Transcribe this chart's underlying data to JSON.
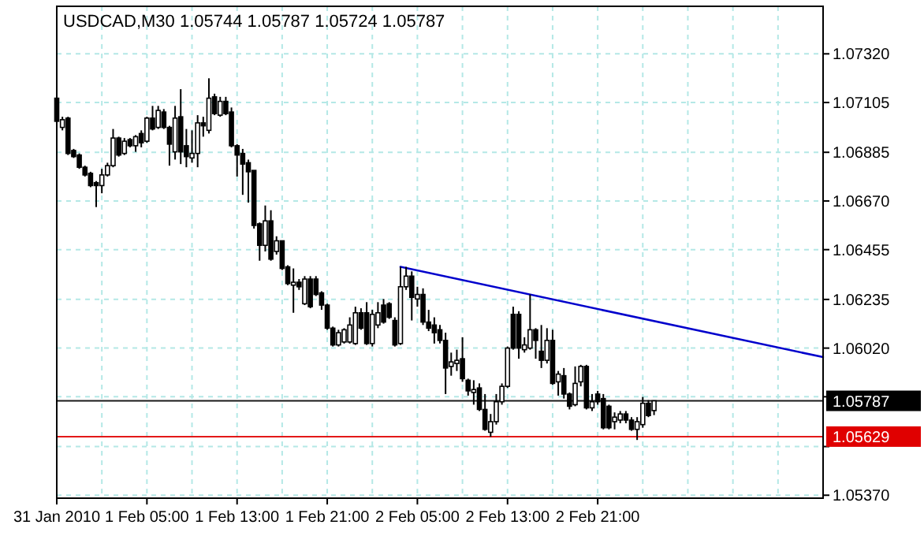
{
  "chart_data": {
    "type": "candlestick",
    "title": "USDCAD,M30  1.05744 1.05787 1.05724 1.05787",
    "x": [
      "2010-01-31T21:00",
      "2010-01-31T21:30",
      "2010-01-31T22:00",
      "2010-01-31T22:30",
      "2010-01-31T23:00",
      "2010-01-31T23:30",
      "2010-02-01T00:00",
      "2010-02-01T00:30",
      "2010-02-01T01:00",
      "2010-02-01T01:30",
      "2010-02-01T02:00",
      "2010-02-01T02:30",
      "2010-02-01T03:00",
      "2010-02-01T03:30",
      "2010-02-01T04:00",
      "2010-02-01T04:30",
      "2010-02-01T05:00",
      "2010-02-01T05:30",
      "2010-02-01T06:00",
      "2010-02-01T06:30",
      "2010-02-01T07:00",
      "2010-02-01T07:30",
      "2010-02-01T08:00",
      "2010-02-01T08:30",
      "2010-02-01T09:00",
      "2010-02-01T09:30",
      "2010-02-01T10:00",
      "2010-02-01T10:30",
      "2010-02-01T11:00",
      "2010-02-01T11:30",
      "2010-02-01T12:00",
      "2010-02-01T12:30",
      "2010-02-01T13:00",
      "2010-02-01T13:30",
      "2010-02-01T14:00",
      "2010-02-01T14:30",
      "2010-02-01T15:00",
      "2010-02-01T15:30",
      "2010-02-01T16:00",
      "2010-02-01T16:30",
      "2010-02-01T17:00",
      "2010-02-01T17:30",
      "2010-02-01T18:00",
      "2010-02-01T18:30",
      "2010-02-01T19:00",
      "2010-02-01T19:30",
      "2010-02-01T20:00",
      "2010-02-01T20:30",
      "2010-02-01T21:00",
      "2010-02-01T21:30",
      "2010-02-01T22:00",
      "2010-02-01T22:30",
      "2010-02-01T23:00",
      "2010-02-01T23:30",
      "2010-02-02T00:00",
      "2010-02-02T00:30",
      "2010-02-02T01:00",
      "2010-02-02T01:30",
      "2010-02-02T02:00",
      "2010-02-02T02:30",
      "2010-02-02T03:00",
      "2010-02-02T03:30",
      "2010-02-02T04:00",
      "2010-02-02T04:30",
      "2010-02-02T05:00",
      "2010-02-02T05:30",
      "2010-02-02T06:00",
      "2010-02-02T06:30",
      "2010-02-02T07:00",
      "2010-02-02T07:30",
      "2010-02-02T08:00",
      "2010-02-02T08:30",
      "2010-02-02T09:00",
      "2010-02-02T09:30",
      "2010-02-02T10:00",
      "2010-02-02T10:30",
      "2010-02-02T11:00",
      "2010-02-02T11:30",
      "2010-02-02T12:00",
      "2010-02-02T12:30",
      "2010-02-02T13:00",
      "2010-02-02T13:30",
      "2010-02-02T14:00",
      "2010-02-02T14:30",
      "2010-02-02T15:00",
      "2010-02-02T15:30",
      "2010-02-02T16:00",
      "2010-02-02T16:30",
      "2010-02-02T17:00",
      "2010-02-02T17:30",
      "2010-02-02T18:00",
      "2010-02-02T18:30",
      "2010-02-02T19:00",
      "2010-02-02T19:30",
      "2010-02-02T20:00",
      "2010-02-02T20:30",
      "2010-02-02T21:00",
      "2010-02-02T21:30",
      "2010-02-02T22:00",
      "2010-02-02T22:30",
      "2010-02-02T23:00",
      "2010-02-02T23:30",
      "2010-02-03T00:00",
      "2010-02-03T00:30",
      "2010-02-03T01:00",
      "2010-02-03T01:30",
      "2010-02-03T02:00"
    ],
    "ohlc": [
      [
        1.07124,
        1.07137,
        1.07015,
        1.07022
      ],
      [
        1.06995,
        1.07042,
        1.06982,
        1.07029
      ],
      [
        1.07036,
        1.07042,
        1.06873,
        1.0688
      ],
      [
        1.06893,
        1.069,
        1.0686,
        1.06866
      ],
      [
        1.06873,
        1.0688,
        1.06812,
        1.06819
      ],
      [
        1.06819,
        1.06826,
        1.06778,
        1.06785
      ],
      [
        1.06792,
        1.06799,
        1.06731,
        1.06738
      ],
      [
        1.06751,
        1.06758,
        1.06643,
        1.06738
      ],
      [
        1.06738,
        1.06812,
        1.06704,
        1.06785
      ],
      [
        1.06785,
        1.06839,
        1.06778,
        1.06826
      ],
      [
        1.06826,
        1.06988,
        1.06819,
        1.06948
      ],
      [
        1.06948,
        1.06954,
        1.06866,
        1.06873
      ],
      [
        1.0688,
        1.06948,
        1.06873,
        1.06934
      ],
      [
        1.06941,
        1.06948,
        1.06907,
        1.06914
      ],
      [
        1.06914,
        1.06961,
        1.06887,
        1.06954
      ],
      [
        1.06968,
        1.06982,
        1.06907,
        1.06927
      ],
      [
        1.06934,
        1.07042,
        1.06927,
        1.07036
      ],
      [
        1.07036,
        1.0709,
        1.06982,
        1.06988
      ],
      [
        1.06995,
        1.0709,
        1.06988,
        1.0707
      ],
      [
        1.07063,
        1.07076,
        1.06988,
        1.06995
      ],
      [
        1.06995,
        1.07002,
        1.06826,
        1.06921
      ],
      [
        1.06887,
        1.0709,
        1.06853,
        1.07036
      ],
      [
        1.07042,
        1.07164,
        1.06833,
        1.06887
      ],
      [
        1.06914,
        1.06988,
        1.06819,
        1.06866
      ],
      [
        1.0686,
        1.06982,
        1.06839,
        1.0688
      ],
      [
        1.0688,
        1.07049,
        1.06819,
        1.07015
      ],
      [
        1.07015,
        1.07042,
        1.06954,
        1.07002
      ],
      [
        1.06982,
        1.07212,
        1.06968,
        1.07124
      ],
      [
        1.0713,
        1.07144,
        1.07049,
        1.07056
      ],
      [
        1.07049,
        1.0713,
        1.07042,
        1.0711
      ],
      [
        1.0711,
        1.0713,
        1.07049,
        1.07056
      ],
      [
        1.07063,
        1.07083,
        1.06907,
        1.06914
      ],
      [
        1.06914,
        1.06921,
        1.06778,
        1.06873
      ],
      [
        1.0688,
        1.069,
        1.06697,
        1.06833
      ],
      [
        1.06839,
        1.06853,
        1.06663,
        1.06799
      ],
      [
        1.06805,
        1.06805,
        1.06548,
        1.06562
      ],
      [
        1.06569,
        1.06575,
        1.06406,
        1.06474
      ],
      [
        1.06474,
        1.0665,
        1.06447,
        1.06582
      ],
      [
        1.06582,
        1.06629,
        1.06406,
        1.06413
      ],
      [
        1.06447,
        1.06514,
        1.06433,
        1.06494
      ],
      [
        1.06494,
        1.06494,
        1.06365,
        1.06372
      ],
      [
        1.06379,
        1.06386,
        1.06298,
        1.06305
      ],
      [
        1.06298,
        1.06372,
        1.06176,
        1.06311
      ],
      [
        1.06311,
        1.06325,
        1.06277,
        1.06291
      ],
      [
        1.06216,
        1.06338,
        1.0621,
        1.06325
      ],
      [
        1.06325,
        1.06338,
        1.06196,
        1.06203
      ],
      [
        1.06325,
        1.06338,
        1.0625,
        1.06257
      ],
      [
        1.06264,
        1.06271,
        1.06189,
        1.0621
      ],
      [
        1.0621,
        1.06216,
        1.06101,
        1.06108
      ],
      [
        1.06108,
        1.06115,
        1.06027,
        1.06034
      ],
      [
        1.06034,
        1.06101,
        1.06027,
        1.06088
      ],
      [
        1.06047,
        1.06108,
        1.0604,
        1.06101
      ],
      [
        1.06047,
        1.06156,
        1.0604,
        1.06122
      ],
      [
        1.0604,
        1.06203,
        1.06034,
        1.06176
      ],
      [
        1.06176,
        1.06196,
        1.06101,
        1.06108
      ],
      [
        1.06176,
        1.06223,
        1.06034,
        1.0604
      ],
      [
        1.0604,
        1.06189,
        1.06027,
        1.06169
      ],
      [
        1.06122,
        1.06223,
        1.06108,
        1.06176
      ],
      [
        1.0621,
        1.06237,
        1.06128,
        1.06135
      ],
      [
        1.06216,
        1.06223,
        1.06149,
        1.06156
      ],
      [
        1.06142,
        1.06156,
        1.06027,
        1.06034
      ],
      [
        1.0604,
        1.06379,
        1.06034,
        1.06291
      ],
      [
        1.06291,
        1.06379,
        1.06277,
        1.06338
      ],
      [
        1.06338,
        1.06359,
        1.06142,
        1.06244
      ],
      [
        1.06237,
        1.06291,
        1.06203,
        1.06257
      ],
      [
        1.06257,
        1.06284,
        1.06122,
        1.06135
      ],
      [
        1.06135,
        1.06189,
        1.06095,
        1.06108
      ],
      [
        1.06122,
        1.06156,
        1.0604,
        1.06088
      ],
      [
        1.06101,
        1.06122,
        1.0604,
        1.06054
      ],
      [
        1.06054,
        1.06088,
        1.05817,
        1.05932
      ],
      [
        1.05939,
        1.06,
        1.05898,
        1.05959
      ],
      [
        1.05952,
        1.06013,
        1.05919,
        1.05966
      ],
      [
        1.05973,
        1.06068,
        1.05871,
        1.05885
      ],
      [
        1.05878,
        1.05885,
        1.0581,
        1.05831
      ],
      [
        1.05824,
        1.05878,
        1.0577,
        1.05837
      ],
      [
        1.05844,
        1.05864,
        1.05742,
        1.05749
      ],
      [
        1.05749,
        1.05817,
        1.05655,
        1.05661
      ],
      [
        1.05648,
        1.05729,
        1.05628,
        1.05695
      ],
      [
        1.05695,
        1.05817,
        1.05682,
        1.05783
      ],
      [
        1.05783,
        1.05864,
        1.0577,
        1.05851
      ],
      [
        1.05851,
        1.06027,
        1.05844,
        1.0602
      ],
      [
        1.06169,
        1.06203,
        1.06013,
        1.0602
      ],
      [
        1.06169,
        1.06183,
        1.05973,
        1.0602
      ],
      [
        1.06013,
        1.06068,
        1.06,
        1.06034
      ],
      [
        1.0602,
        1.06257,
        1.06013,
        1.06101
      ],
      [
        1.06101,
        1.06108,
        1.05973,
        1.06054
      ],
      [
        1.06006,
        1.06122,
        1.05932,
        1.05966
      ],
      [
        1.05966,
        1.06108,
        1.05952,
        1.06054
      ],
      [
        1.06054,
        1.06101,
        1.05858,
        1.05864
      ],
      [
        1.05871,
        1.05919,
        1.0581,
        1.05905
      ],
      [
        1.05898,
        1.05932,
        1.05797,
        1.05817
      ],
      [
        1.05817,
        1.05824,
        1.05749,
        1.05763
      ],
      [
        1.0577,
        1.05939,
        1.05763,
        1.05864
      ],
      [
        1.05871,
        1.05946,
        1.05851,
        1.05939
      ],
      [
        1.05939,
        1.05946,
        1.05749,
        1.05756
      ],
      [
        1.05756,
        1.05817,
        1.05742,
        1.05783
      ],
      [
        1.05817,
        1.05831,
        1.0577,
        1.05783
      ],
      [
        1.05797,
        1.05817,
        1.05661,
        1.05668
      ],
      [
        1.05763,
        1.0577,
        1.05661,
        1.05668
      ],
      [
        1.05695,
        1.05736,
        1.05661,
        1.05715
      ],
      [
        1.05702,
        1.05742,
        1.05688,
        1.05729
      ],
      [
        1.05729,
        1.05742,
        1.05688,
        1.05702
      ],
      [
        1.05702,
        1.05715,
        1.05655,
        1.05661
      ],
      [
        1.05661,
        1.05715,
        1.05614,
        1.05695
      ],
      [
        1.05682,
        1.05804,
        1.05668,
        1.05776
      ],
      [
        1.05776,
        1.0579,
        1.05715,
        1.05722
      ],
      [
        1.05744,
        1.05787,
        1.05724,
        1.05787
      ]
    ],
    "series": [
      {
        "type": "line",
        "color": "#0000cc",
        "x": [
          "2010-02-02T03:30",
          "2010-02-03T17:00"
        ],
        "values": [
          1.06379,
          1.0598
        ]
      }
    ],
    "xlim": [
      "2010-01-31T21:00",
      "2010-02-03T17:00"
    ],
    "xticks": [
      {
        "value": "2010-01-31T21:00",
        "label": "31 Jan 2010"
      },
      {
        "value": "2010-02-01T01:00",
        "label": null
      },
      {
        "value": "2010-02-01T05:00",
        "label": "1 Feb 05:00"
      },
      {
        "value": "2010-02-01T09:00",
        "label": null
      },
      {
        "value": "2010-02-01T13:00",
        "label": "1 Feb 13:00"
      },
      {
        "value": "2010-02-01T17:00",
        "label": null
      },
      {
        "value": "2010-02-01T21:00",
        "label": "1 Feb 21:00"
      },
      {
        "value": "2010-02-02T01:00",
        "label": null
      },
      {
        "value": "2010-02-02T05:00",
        "label": "2 Feb 05:00"
      },
      {
        "value": "2010-02-02T09:00",
        "label": null
      },
      {
        "value": "2010-02-02T13:00",
        "label": "2 Feb 13:00"
      },
      {
        "value": "2010-02-02T17:00",
        "label": null
      },
      {
        "value": "2010-02-02T21:00",
        "label": "2 Feb 21:00"
      },
      {
        "value": "2010-02-03T01:00",
        "label": null
      },
      {
        "value": "2010-02-03T05:00",
        "label": null
      },
      {
        "value": "2010-02-03T09:00",
        "label": null
      },
      {
        "value": "2010-02-03T13:00",
        "label": null
      }
    ],
    "ylim": [
      1.05357,
      1.0753
    ],
    "yticks": [
      {
        "value": 1.0537,
        "label": "1.05370"
      },
      {
        "value": 1.05585,
        "label": null
      },
      {
        "value": 1.05805,
        "label": null
      },
      {
        "value": 1.0602,
        "label": "1.06020"
      },
      {
        "value": 1.06235,
        "label": "1.06235"
      },
      {
        "value": 1.06455,
        "label": "1.06455"
      },
      {
        "value": 1.0667,
        "label": "1.06670"
      },
      {
        "value": 1.06885,
        "label": "1.06885"
      },
      {
        "value": 1.07105,
        "label": "1.07105"
      },
      {
        "value": 1.0732,
        "label": "1.07320"
      }
    ],
    "grid": true,
    "ref_lines": [
      {
        "axis": "y",
        "value": 1.05787,
        "label": "1.05787",
        "color": "#000000"
      },
      {
        "axis": "y",
        "value": 1.05629,
        "label": "1.05629",
        "color": "#e00000"
      }
    ]
  }
}
